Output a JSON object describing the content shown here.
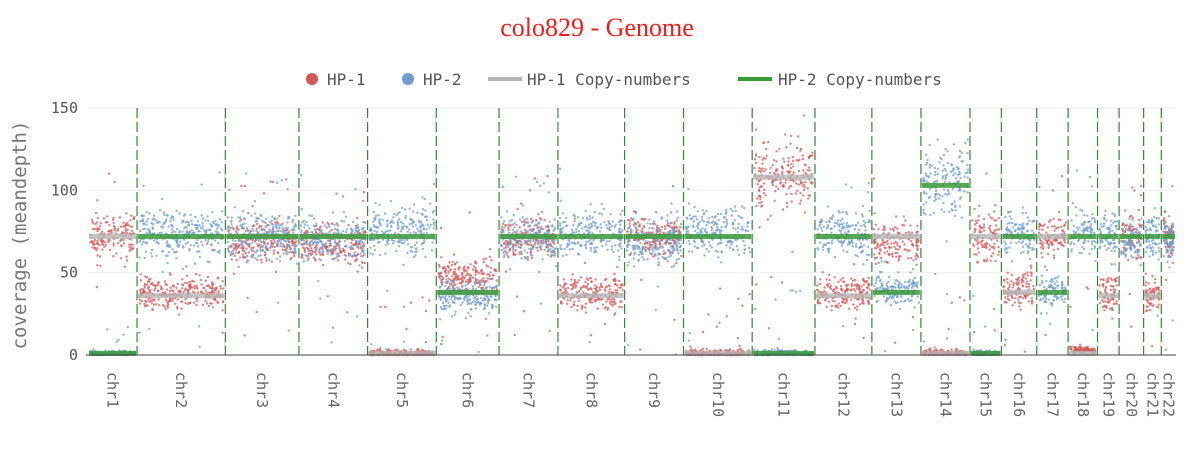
{
  "chart_data": {
    "type": "scatter",
    "title": "colo829 - Genome",
    "ylabel": "coverage (meandepth)",
    "xlabel": "",
    "ylim": [
      0,
      150
    ],
    "yticks": [
      0,
      50,
      100,
      150
    ],
    "grid": true,
    "legend_position": "top-center",
    "legend": [
      {
        "label": "HP-1",
        "kind": "point",
        "color": "#d15a5a"
      },
      {
        "label": "HP-2",
        "kind": "point",
        "color": "#6f9ccc"
      },
      {
        "label": "HP-1 Copy-numbers",
        "kind": "line",
        "color": "#b5b5b5"
      },
      {
        "label": "HP-2 Copy-numbers",
        "kind": "line",
        "color": "#3a9a3a"
      }
    ],
    "chromosomes": [
      {
        "name": "chr1",
        "hp1": 72,
        "hp2": 1,
        "hp1_cn": 72,
        "hp2_cn": 1
      },
      {
        "name": "chr2",
        "hp1": 38,
        "hp2": 74,
        "hp1_cn": 36,
        "hp2_cn": 72
      },
      {
        "name": "chr3",
        "hp1": 70,
        "hp2": 72,
        "hp1_cn": 72,
        "hp2_cn": 72
      },
      {
        "name": "chr4",
        "hp1": 68,
        "hp2": 70,
        "hp1_cn": 72,
        "hp2_cn": 72
      },
      {
        "name": "chr5",
        "hp1": 1,
        "hp2": 75,
        "hp1_cn": 1,
        "hp2_cn": 72
      },
      {
        "name": "chr6",
        "hp1": 48,
        "hp2": 36,
        "hp1_cn": 38,
        "hp2_cn": 38
      },
      {
        "name": "chr7",
        "hp1": 72,
        "hp2": 70,
        "hp1_cn": 72,
        "hp2_cn": 72
      },
      {
        "name": "chr8",
        "hp1": 38,
        "hp2": 74,
        "hp1_cn": 36,
        "hp2_cn": 72
      },
      {
        "name": "chr9",
        "hp1": 72,
        "hp2": 68,
        "hp1_cn": 72,
        "hp2_cn": 72
      },
      {
        "name": "chr10",
        "hp1": 1,
        "hp2": 75,
        "hp1_cn": 1,
        "hp2_cn": 72
      },
      {
        "name": "chr11",
        "hp1": 110,
        "hp2": 1,
        "hp1_cn": 108,
        "hp2_cn": 1
      },
      {
        "name": "chr12",
        "hp1": 38,
        "hp2": 74,
        "hp1_cn": 36,
        "hp2_cn": 72
      },
      {
        "name": "chr13",
        "hp1": 68,
        "hp2": 40,
        "hp1_cn": 72,
        "hp2_cn": 38
      },
      {
        "name": "chr14",
        "hp1": 1,
        "hp2": 105,
        "hp1_cn": 1,
        "hp2_cn": 103
      },
      {
        "name": "chr15",
        "hp1": 72,
        "hp2": 1,
        "hp1_cn": 72,
        "hp2_cn": 1
      },
      {
        "name": "chr16",
        "hp1": 40,
        "hp2": 74,
        "hp1_cn": 38,
        "hp2_cn": 72
      },
      {
        "name": "chr17",
        "hp1": 72,
        "hp2": 40,
        "hp1_cn": 72,
        "hp2_cn": 38
      },
      {
        "name": "chr18",
        "hp1": 3,
        "hp2": 74,
        "hp1_cn": 1,
        "hp2_cn": 72
      },
      {
        "name": "chr19",
        "hp1": 38,
        "hp2": 74,
        "hp1_cn": 36,
        "hp2_cn": 72
      },
      {
        "name": "chr20",
        "hp1": 72,
        "hp2": 70,
        "hp1_cn": 72,
        "hp2_cn": 72
      },
      {
        "name": "chr21",
        "hp1": 36,
        "hp2": 72,
        "hp1_cn": 36,
        "hp2_cn": 72
      },
      {
        "name": "chr22",
        "hp1": 72,
        "hp2": 70,
        "hp1_cn": 72,
        "hp2_cn": 72
      }
    ]
  }
}
